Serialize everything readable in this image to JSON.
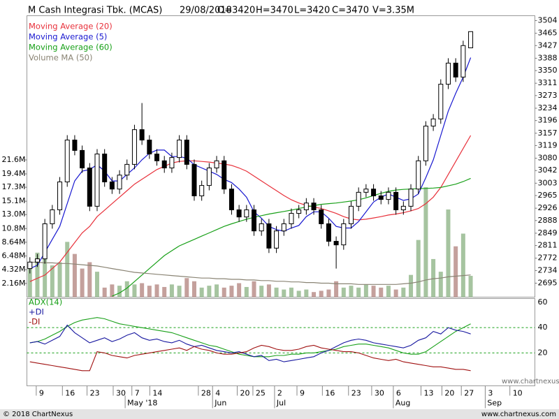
{
  "header": {
    "title": "M Cash Integrasi Tbk. (MCAS)",
    "fields": [
      "29/08/2018",
      "O=3420",
      "H=3470",
      "L=3420",
      "C=3470",
      "V=3.35M"
    ]
  },
  "chart_data": [
    {
      "type": "candlestick",
      "xlim": [
        -0.4,
        67.6
      ],
      "open": [
        2740,
        2760,
        2770,
        2878,
        2921,
        3007,
        3136,
        3104,
        3050,
        2932,
        3093,
        3007,
        2985,
        3028,
        3061,
        3168,
        3136,
        3093,
        3072,
        3050,
        3082,
        3136,
        3061,
        2964,
        2996,
        3050,
        3072,
        2985,
        2921,
        2899,
        2921,
        2856,
        2878,
        2803,
        2856,
        2878,
        2910,
        2921,
        2942,
        2921,
        2878,
        2824,
        2813,
        2878,
        2932,
        2975,
        2985,
        2964,
        2953,
        2975,
        2921,
        2932,
        2985,
        3072,
        3179,
        3201,
        3308,
        3373,
        3330,
        3420
      ],
      "high": [
        2775,
        2785,
        2893,
        2936,
        3022,
        3151,
        3151,
        3119,
        3065,
        3108,
        3108,
        3022,
        3043,
        3076,
        3183,
        3250,
        3151,
        3108,
        3087,
        3097,
        3151,
        3151,
        3076,
        3011,
        3065,
        3087,
        3087,
        3000,
        2936,
        2936,
        2936,
        2893,
        2893,
        2871,
        2893,
        2925,
        2936,
        2957,
        2957,
        2936,
        2893,
        2839,
        2893,
        2947,
        2990,
        3000,
        3000,
        2979,
        2990,
        2990,
        2947,
        3000,
        3087,
        3194,
        3216,
        3323,
        3388,
        3388,
        3442,
        3470
      ],
      "low": [
        2725,
        2745,
        2755,
        2863,
        2906,
        2992,
        3089,
        3035,
        2917,
        2917,
        2992,
        2970,
        2970,
        3013,
        3046,
        3121,
        3078,
        3057,
        3035,
        3035,
        3067,
        3046,
        2949,
        2949,
        2981,
        3035,
        2970,
        2906,
        2884,
        2884,
        2841,
        2841,
        2788,
        2788,
        2841,
        2863,
        2895,
        2906,
        2906,
        2863,
        2809,
        2740,
        2798,
        2863,
        2917,
        2960,
        2949,
        2938,
        2938,
        2906,
        2906,
        2917,
        2970,
        3057,
        3164,
        3186,
        3293,
        3315,
        3315,
        3420
      ],
      "close": [
        2760,
        2770,
        2878,
        2921,
        3007,
        3136,
        3104,
        3050,
        2932,
        3093,
        3007,
        2985,
        3028,
        3061,
        3168,
        3136,
        3093,
        3072,
        3050,
        3082,
        3136,
        3061,
        2964,
        2996,
        3050,
        3072,
        2985,
        2921,
        2899,
        2921,
        2856,
        2878,
        2803,
        2856,
        2878,
        2910,
        2921,
        2942,
        2921,
        2878,
        2824,
        2813,
        2878,
        2932,
        2975,
        2985,
        2964,
        2953,
        2975,
        2921,
        2932,
        2985,
        3072,
        3179,
        3201,
        3308,
        3373,
        3330,
        3427,
        3470
      ],
      "candle_colors": {
        "up": "#ffffff",
        "down": "#000000",
        "outline": "#000000"
      },
      "volume": {
        "axis": "y2",
        "colors": {
          "up": "#a6c4a0",
          "down": "#c4a09c"
        },
        "values": [
          4.5,
          7.0,
          6.0,
          5.0,
          5.5,
          8.7,
          6.8,
          4.5,
          5.5,
          4.0,
          1.5,
          2.0,
          1.8,
          2.5,
          2.0,
          2.2,
          1.8,
          2.0,
          1.6,
          2.0,
          1.8,
          3.0,
          2.5,
          1.5,
          1.8,
          2.0,
          1.5,
          1.8,
          2.2,
          1.6,
          2.5,
          1.8,
          2.0,
          1.5,
          1.2,
          1.5,
          1.0,
          1.2,
          0.8,
          1.0,
          1.2,
          2.5,
          1.5,
          1.8,
          1.5,
          2.0,
          1.8,
          1.5,
          1.8,
          1.2,
          1.5,
          3.5,
          9.0,
          17.3,
          6.0,
          4.0,
          13.8,
          8.0,
          10.0,
          3.35
        ]
      },
      "series": [
        {
          "name": "Moving Average (20)",
          "color": "#e8303a",
          "values": [
            2700,
            2710,
            2720,
            2740,
            2760,
            2790,
            2820,
            2850,
            2870,
            2900,
            2920,
            2940,
            2960,
            2980,
            3000,
            3015,
            3030,
            3045,
            3055,
            3065,
            3070,
            3072,
            3072,
            3070,
            3068,
            3065,
            3062,
            3058,
            3050,
            3040,
            3025,
            3010,
            2995,
            2980,
            2965,
            2952,
            2942,
            2935,
            2930,
            2925,
            2918,
            2910,
            2900,
            2893,
            2890,
            2892,
            2896,
            2900,
            2905,
            2908,
            2912,
            2918,
            2925,
            2940,
            2960,
            2990,
            3030,
            3070,
            3110,
            3150
          ]
        },
        {
          "name": "Moving Average (5)",
          "color": "#1818d0",
          "values": [
            2740,
            2750,
            2790,
            2830,
            2870,
            2940,
            3010,
            3040,
            3045,
            3060,
            3040,
            3010,
            3010,
            3030,
            3050,
            3075,
            3095,
            3105,
            3105,
            3085,
            3085,
            3080,
            3060,
            3050,
            3040,
            3030,
            3015,
            3005,
            2985,
            2960,
            2915,
            2895,
            2870,
            2860,
            2855,
            2865,
            2873,
            2900,
            2915,
            2915,
            2895,
            2870,
            2865,
            2865,
            2885,
            2915,
            2945,
            2960,
            2970,
            2960,
            2950,
            2955,
            2970,
            3020,
            3075,
            3150,
            3225,
            3280,
            3330,
            3390
          ]
        },
        {
          "name": "Moving Average (60)",
          "color": "#18a018",
          "values": [
            null,
            null,
            null,
            null,
            null,
            null,
            null,
            null,
            null,
            null,
            null,
            2655,
            2665,
            2680,
            2700,
            2720,
            2740,
            2760,
            2780,
            2795,
            2810,
            2820,
            2830,
            2840,
            2850,
            2860,
            2870,
            2878,
            2885,
            2892,
            2898,
            2903,
            2908,
            2912,
            2916,
            2920,
            2925,
            2930,
            2934,
            2938,
            2940,
            2942,
            2945,
            2948,
            2952,
            2958,
            2965,
            2972,
            2978,
            2982,
            2984,
            2985,
            2986,
            2987,
            2988,
            2990,
            2995,
            3000,
            3008,
            3018
          ]
        },
        {
          "name": "Volume MA (50)",
          "color": "#8a8474",
          "axis": "y2",
          "values": [
            5.5,
            5.5,
            5.4,
            5.4,
            5.3,
            5.3,
            5.2,
            5.1,
            5.0,
            4.9,
            4.7,
            4.5,
            4.3,
            4.1,
            3.9,
            3.8,
            3.7,
            3.6,
            3.5,
            3.4,
            3.3,
            3.2,
            3.1,
            3.0,
            3.0,
            2.9,
            2.9,
            2.8,
            2.8,
            2.7,
            2.7,
            2.6,
            2.6,
            2.5,
            2.5,
            2.4,
            2.4,
            2.3,
            2.3,
            2.2,
            2.2,
            2.1,
            2.1,
            2.1,
            2.0,
            2.0,
            2.0,
            2.0,
            2.0,
            2.0,
            2.1,
            2.2,
            2.4,
            2.7,
            2.9,
            3.0,
            3.2,
            3.3,
            3.4,
            3.5
          ]
        }
      ],
      "ylim": [
        2652,
        3519
      ],
      "yticks": [
        3504,
        3465,
        3427,
        3388,
        3350,
        3311,
        3273,
        3234,
        3196,
        3157,
        3119,
        3080,
        3042,
        3003,
        2965,
        2926,
        2888,
        2849,
        2811,
        2772,
        2734,
        2695
      ],
      "y2lim": [
        0,
        44.3
      ],
      "y2ticks": [
        {
          "value": 21.6,
          "label": "21.6M"
        },
        {
          "value": 19.4,
          "label": "19.4M"
        },
        {
          "value": 17.3,
          "label": "17.3M"
        },
        {
          "value": 15.1,
          "label": "15.1M"
        },
        {
          "value": 13.0,
          "label": "13.0M"
        },
        {
          "value": 10.8,
          "label": "10.8M"
        },
        {
          "value": 8.64,
          "label": "8.64M"
        },
        {
          "value": 6.48,
          "label": "6.48M"
        },
        {
          "value": 4.32,
          "label": "4.32M"
        },
        {
          "value": 2.16,
          "label": "2.16M"
        }
      ]
    },
    {
      "type": "line",
      "xlim": [
        -0.4,
        67.6
      ],
      "series": [
        {
          "name": "ADX(14)",
          "color": "#18a018",
          "values": [
            28,
            29,
            31,
            34,
            37,
            41,
            44,
            46,
            47,
            48,
            47,
            45,
            43,
            42,
            41,
            40,
            39,
            38,
            37,
            36,
            34,
            32,
            30,
            28,
            26,
            25,
            23,
            21,
            19,
            18,
            17,
            17,
            17,
            18,
            18,
            19,
            19,
            20,
            20,
            21,
            22,
            23,
            25,
            26,
            27,
            27,
            26,
            25,
            24,
            22,
            20,
            19,
            19,
            21,
            25,
            29,
            33,
            37,
            40,
            43
          ]
        },
        {
          "name": "+DI",
          "color": "#1818a0",
          "values": [
            28,
            29,
            27,
            30,
            33,
            42,
            36,
            32,
            28,
            30,
            32,
            29,
            31,
            34,
            36,
            32,
            30,
            31,
            29,
            28,
            30,
            27,
            25,
            26,
            24,
            22,
            21,
            20,
            21,
            19,
            17,
            18,
            14,
            15,
            13,
            14,
            15,
            16,
            17,
            20,
            22,
            25,
            28,
            30,
            31,
            30,
            28,
            27,
            26,
            25,
            24,
            26,
            30,
            32,
            37,
            35,
            40,
            38,
            37,
            35
          ]
        },
        {
          "name": "-DI",
          "color": "#a01010",
          "values": [
            13,
            12,
            11,
            10,
            9,
            8,
            7,
            6,
            6,
            21,
            20,
            18,
            17,
            16,
            18,
            19,
            20,
            21,
            22,
            23,
            24,
            22,
            25,
            23,
            22,
            20,
            19,
            19,
            20,
            21,
            24,
            26,
            25,
            23,
            22,
            22,
            23,
            25,
            26,
            24,
            23,
            22,
            21,
            21,
            20,
            18,
            16,
            15,
            14,
            15,
            13,
            12,
            11,
            10,
            9,
            9,
            8,
            7,
            7,
            6
          ]
        }
      ],
      "ylim": [
        -6,
        63
      ],
      "yticks": [
        60,
        40,
        20
      ],
      "grid": true,
      "grid_color": "#18a018",
      "xticks": [
        {
          "value": 1.6,
          "label": "9"
        },
        {
          "value": 5.1,
          "label": "16"
        },
        {
          "value": 8.4,
          "label": "23"
        },
        {
          "value": 11.9,
          "label": "30"
        },
        {
          "value": 14.4,
          "label": "7"
        },
        {
          "value": 16.8,
          "label": "14"
        },
        {
          "value": 23.3,
          "label": "28"
        },
        {
          "value": 25.2,
          "label": "4"
        },
        {
          "value": 28.5,
          "label": "20"
        },
        {
          "value": 30.6,
          "label": "25"
        },
        {
          "value": 33.5,
          "label": "2"
        },
        {
          "value": 36.5,
          "label": "9"
        },
        {
          "value": 39.9,
          "label": "16"
        },
        {
          "value": 43.4,
          "label": "23"
        },
        {
          "value": 46.5,
          "label": "30"
        },
        {
          "value": 49.4,
          "label": "6"
        },
        {
          "value": 53.1,
          "label": "13"
        },
        {
          "value": 55.9,
          "label": "20"
        },
        {
          "value": 58.5,
          "label": "27"
        },
        {
          "value": 61.7,
          "label": "3"
        },
        {
          "value": 65.0,
          "label": "10"
        }
      ],
      "month_ticks": [
        {
          "value": 13.5,
          "label": "May '18"
        },
        {
          "value": 25.2,
          "label": "Jun"
        },
        {
          "value": 33.5,
          "label": "Jul"
        },
        {
          "value": 49.4,
          "label": "Aug"
        },
        {
          "value": 61.7,
          "label": "Sep"
        }
      ]
    }
  ],
  "watermark": "www.chartnexus.com",
  "footer": {
    "copyright": "© 2018 ChartNexus",
    "url": "www.chartnexus.com"
  }
}
